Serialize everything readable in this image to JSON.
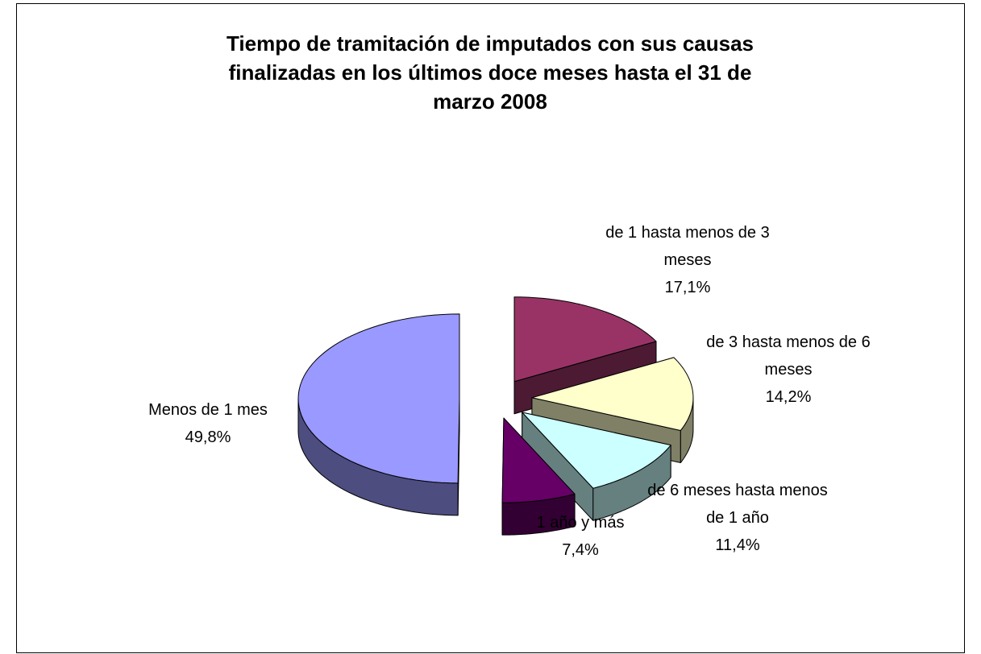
{
  "chart_data": {
    "type": "pie",
    "title": "Tiempo de tramitación de imputados con sus causas finalizadas en los últimos doce meses hasta el 31 de marzo 2008",
    "categories": [
      "de 1 hasta menos de 3 meses",
      "de 3 hasta menos de 6 meses",
      "de 6 meses hasta menos de 1 año",
      "1 año y más",
      "Menos de 1 mes"
    ],
    "values": [
      17.1,
      14.2,
      11.4,
      7.4,
      49.8
    ],
    "value_labels": [
      "17,1%",
      "14,2%",
      "11,4%",
      "7,4%",
      "49,8%"
    ],
    "colors": [
      "#993366",
      "#ffffcc",
      "#ccffff",
      "#660066",
      "#9999ff"
    ]
  }
}
